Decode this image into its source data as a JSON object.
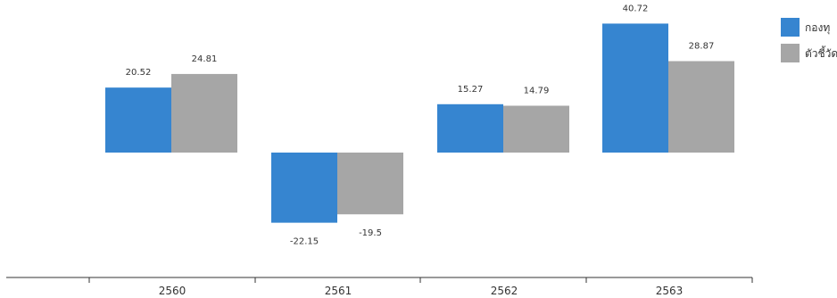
{
  "chart_data": {
    "type": "bar",
    "categories": [
      "2560",
      "2561",
      "2562",
      "2563"
    ],
    "series": [
      {
        "name": "กองทุ",
        "color": "#3685D0",
        "values": [
          20.52,
          -22.15,
          15.27,
          40.72
        ]
      },
      {
        "name": "ตัวชี้วัด",
        "color": "#A6A6A6",
        "values": [
          24.81,
          -19.5,
          14.79,
          28.87
        ]
      }
    ],
    "data_labels": [
      [
        "20.52",
        "-22.15",
        "15.27",
        "40.72"
      ],
      [
        "24.81",
        "-19.5",
        "14.79",
        "28.87"
      ]
    ],
    "ylim": [
      -40,
      45
    ],
    "grid": false,
    "legend": "right",
    "axis_color": "#333333"
  }
}
